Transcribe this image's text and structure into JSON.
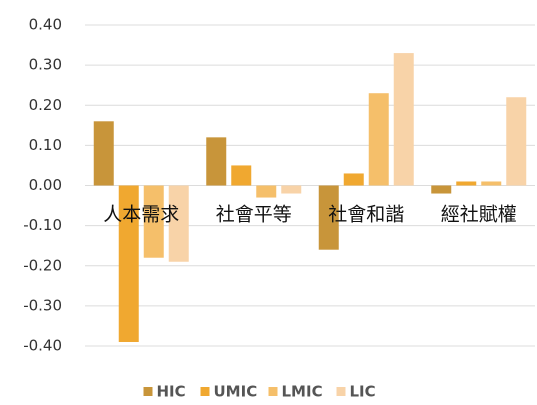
{
  "chart_data": {
    "type": "bar",
    "categories": [
      "人本需求",
      "社會平等",
      "社會和諧",
      "經社賦權"
    ],
    "series": [
      {
        "name": "HIC",
        "color": "#c8953a",
        "values": [
          0.16,
          0.12,
          -0.16,
          -0.02
        ]
      },
      {
        "name": "UMIC",
        "color": "#f0a830",
        "values": [
          -0.39,
          0.05,
          0.03,
          0.01
        ]
      },
      {
        "name": "LMIC",
        "color": "#f5bf6a",
        "values": [
          -0.18,
          -0.03,
          0.23,
          0.01
        ]
      },
      {
        "name": "LIC",
        "color": "#f8d3a8",
        "values": [
          -0.19,
          -0.02,
          0.33,
          0.22
        ]
      }
    ],
    "ylim": [
      -0.4,
      0.4
    ],
    "yticks": [
      {
        "value": 0.4,
        "label": "0.40"
      },
      {
        "value": 0.3,
        "label": "0.30"
      },
      {
        "value": 0.2,
        "label": "0.20"
      },
      {
        "value": 0.1,
        "label": "0.10"
      },
      {
        "value": 0,
        "label": "0.00"
      },
      {
        "value": -0.1,
        "label": "-0.10"
      },
      {
        "value": -0.2,
        "label": "-0.20"
      },
      {
        "value": -0.3,
        "label": "-0.30"
      },
      {
        "value": -0.4,
        "label": "-0.40"
      }
    ],
    "grid": true,
    "legend": "bottom"
  }
}
